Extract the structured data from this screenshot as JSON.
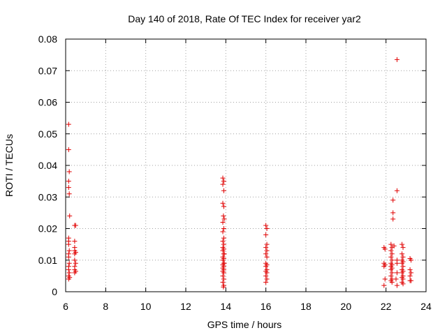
{
  "chart_data": {
    "type": "scatter",
    "title": "Day 140 of 2018, Rate Of TEC Index for receiver yar2",
    "xlabel": "GPS time / hours",
    "ylabel": "ROTI / TECUs",
    "xlim": [
      6,
      24
    ],
    "ylim": [
      0,
      0.08
    ],
    "grid": true,
    "marker": "+",
    "marker_color": "#e00000",
    "x_ticks": [
      6,
      8,
      10,
      12,
      14,
      16,
      18,
      20,
      22,
      24
    ],
    "x_tick_labels": [
      "6",
      "8",
      "10",
      "12",
      "14",
      "16",
      "18",
      "20",
      "22",
      "24"
    ],
    "y_ticks": [
      0,
      0.01,
      0.02,
      0.03,
      0.04,
      0.05,
      0.06,
      0.07,
      0.08
    ],
    "y_tick_labels": [
      "0",
      "0.01",
      "0.02",
      "0.03",
      "0.04",
      "0.05",
      "0.06",
      "0.07",
      "0.08"
    ],
    "series": [
      {
        "name": "yar2",
        "points": [
          [
            6.15,
            0.053
          ],
          [
            6.15,
            0.045
          ],
          [
            6.18,
            0.038
          ],
          [
            6.15,
            0.035
          ],
          [
            6.15,
            0.033
          ],
          [
            6.18,
            0.031
          ],
          [
            6.2,
            0.024
          ],
          [
            6.15,
            0.017
          ],
          [
            6.15,
            0.016
          ],
          [
            6.15,
            0.015
          ],
          [
            6.18,
            0.013
          ],
          [
            6.15,
            0.012
          ],
          [
            6.15,
            0.011
          ],
          [
            6.18,
            0.009
          ],
          [
            6.15,
            0.008
          ],
          [
            6.15,
            0.007
          ],
          [
            6.18,
            0.006
          ],
          [
            6.15,
            0.005
          ],
          [
            6.15,
            0.004
          ],
          [
            6.2,
            0.0045
          ],
          [
            6.45,
            0.021
          ],
          [
            6.5,
            0.021
          ],
          [
            6.45,
            0.016
          ],
          [
            6.45,
            0.014
          ],
          [
            6.45,
            0.013
          ],
          [
            6.5,
            0.0125
          ],
          [
            6.45,
            0.012
          ],
          [
            6.45,
            0.01
          ],
          [
            6.5,
            0.009
          ],
          [
            6.45,
            0.008
          ],
          [
            6.45,
            0.007
          ],
          [
            6.5,
            0.0065
          ],
          [
            6.45,
            0.006
          ],
          [
            13.85,
            0.036
          ],
          [
            13.9,
            0.035
          ],
          [
            13.85,
            0.034
          ],
          [
            13.9,
            0.032
          ],
          [
            13.85,
            0.028
          ],
          [
            13.9,
            0.027
          ],
          [
            13.88,
            0.024
          ],
          [
            13.92,
            0.023
          ],
          [
            13.85,
            0.022
          ],
          [
            13.9,
            0.02
          ],
          [
            13.85,
            0.019
          ],
          [
            13.9,
            0.017
          ],
          [
            13.85,
            0.016
          ],
          [
            13.9,
            0.015
          ],
          [
            13.85,
            0.014
          ],
          [
            13.9,
            0.0135
          ],
          [
            13.85,
            0.013
          ],
          [
            13.9,
            0.012
          ],
          [
            13.85,
            0.011
          ],
          [
            13.9,
            0.0105
          ],
          [
            13.85,
            0.01
          ],
          [
            13.9,
            0.009
          ],
          [
            13.85,
            0.0085
          ],
          [
            13.9,
            0.008
          ],
          [
            13.85,
            0.0075
          ],
          [
            13.9,
            0.007
          ],
          [
            13.85,
            0.0065
          ],
          [
            13.9,
            0.006
          ],
          [
            13.85,
            0.005
          ],
          [
            13.9,
            0.004
          ],
          [
            13.85,
            0.003
          ],
          [
            13.9,
            0.002
          ],
          [
            13.88,
            0.0015
          ],
          [
            13.92,
            0.012
          ],
          [
            13.92,
            0.009
          ],
          [
            16.0,
            0.021
          ],
          [
            16.05,
            0.02
          ],
          [
            16.0,
            0.018
          ],
          [
            16.05,
            0.015
          ],
          [
            16.0,
            0.014
          ],
          [
            16.05,
            0.013
          ],
          [
            16.0,
            0.012
          ],
          [
            16.05,
            0.011
          ],
          [
            16.0,
            0.009
          ],
          [
            16.05,
            0.0085
          ],
          [
            16.0,
            0.008
          ],
          [
            16.05,
            0.007
          ],
          [
            16.0,
            0.0065
          ],
          [
            16.05,
            0.006
          ],
          [
            16.0,
            0.005
          ],
          [
            16.05,
            0.004
          ],
          [
            16.0,
            0.003
          ],
          [
            21.9,
            0.014
          ],
          [
            21.95,
            0.0135
          ],
          [
            21.9,
            0.009
          ],
          [
            21.95,
            0.0085
          ],
          [
            21.9,
            0.008
          ],
          [
            21.95,
            0.004
          ],
          [
            21.9,
            0.002
          ],
          [
            22.25,
            0.015
          ],
          [
            22.3,
            0.014
          ],
          [
            22.25,
            0.013
          ],
          [
            22.3,
            0.012
          ],
          [
            22.25,
            0.011
          ],
          [
            22.3,
            0.01
          ],
          [
            22.25,
            0.009
          ],
          [
            22.3,
            0.0085
          ],
          [
            22.25,
            0.008
          ],
          [
            22.3,
            0.0075
          ],
          [
            22.25,
            0.007
          ],
          [
            22.3,
            0.006
          ],
          [
            22.25,
            0.005
          ],
          [
            22.3,
            0.004
          ],
          [
            22.25,
            0.0035
          ],
          [
            22.3,
            0.003
          ],
          [
            22.35,
            0.029
          ],
          [
            22.35,
            0.025
          ],
          [
            22.35,
            0.023
          ],
          [
            22.4,
            0.0145
          ],
          [
            22.55,
            0.0735
          ],
          [
            22.55,
            0.032
          ],
          [
            22.55,
            0.01
          ],
          [
            22.55,
            0.009
          ],
          [
            22.55,
            0.006
          ],
          [
            22.5,
            0.004
          ],
          [
            22.55,
            0.002
          ],
          [
            22.8,
            0.015
          ],
          [
            22.85,
            0.014
          ],
          [
            22.8,
            0.012
          ],
          [
            22.85,
            0.011
          ],
          [
            22.8,
            0.01
          ],
          [
            22.85,
            0.0095
          ],
          [
            22.8,
            0.009
          ],
          [
            22.85,
            0.008
          ],
          [
            22.8,
            0.007
          ],
          [
            22.85,
            0.0065
          ],
          [
            22.8,
            0.006
          ],
          [
            22.85,
            0.005
          ],
          [
            22.8,
            0.0045
          ],
          [
            22.85,
            0.004
          ],
          [
            22.8,
            0.003
          ],
          [
            22.85,
            0.0025
          ],
          [
            23.2,
            0.0105
          ],
          [
            23.25,
            0.01
          ],
          [
            23.2,
            0.007
          ],
          [
            23.25,
            0.006
          ],
          [
            23.2,
            0.005
          ],
          [
            23.25,
            0.0035
          ],
          [
            23.2,
            0.0035
          ]
        ]
      }
    ]
  }
}
